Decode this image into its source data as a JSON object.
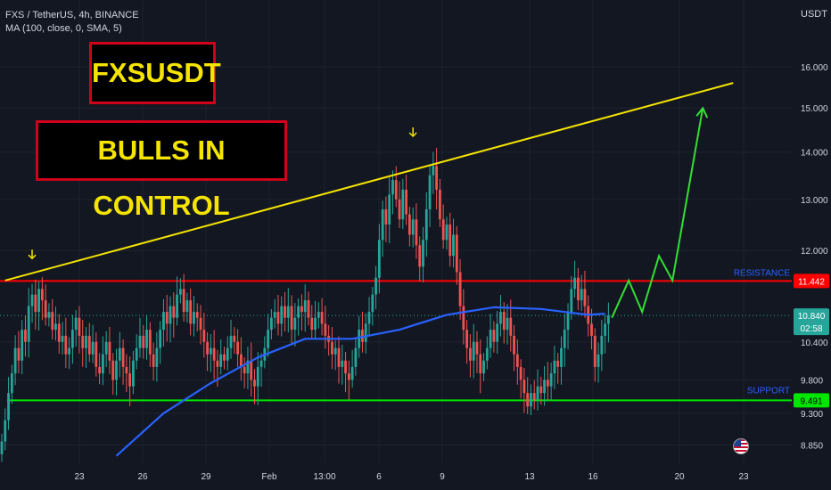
{
  "legend": {
    "symbol_line": "FXS / TetherUS, 4h, BINANCE",
    "indicator_line": "MA (100, close, 0, SMA, 5)"
  },
  "header": {
    "currency": "USDT"
  },
  "annotations": {
    "title": "FXSUSDT",
    "subtitle": "BULLS IN CONTROL",
    "resistance_label": "RESISTANCE",
    "support_label": "SUPPORT"
  },
  "colors": {
    "background": "#131722",
    "bull": "#26a69a",
    "bear": "#ef5350",
    "ma": "#2962ff",
    "resistance": "#ff0000",
    "support": "#00e600",
    "trendline": "#f5e400",
    "projection": "#32e032",
    "title_text": "#f5e400",
    "title_border": "#d0021b",
    "grid": "#1e222d"
  },
  "chart_data": {
    "type": "candlestick",
    "symbol": "FXS / TetherUS",
    "timeframe": "4h",
    "exchange": "BINANCE",
    "price_scale": "log",
    "ylim": [
      8.6,
      16.8
    ],
    "y_ticks": [
      "16.000",
      "15.000",
      "14.000",
      "13.000",
      "12.000",
      "10.400",
      "9.800",
      "9.300",
      "8.850"
    ],
    "x_ticks": [
      "23",
      "26",
      "29",
      "Feb",
      "13:00",
      "6",
      "9",
      "13",
      "16",
      "20",
      "23"
    ],
    "price_labels": [
      {
        "text": "11.442",
        "value": 11.442,
        "color": "#ff0000",
        "text_color": "#ffffff"
      },
      {
        "text": "10.840",
        "value": 10.84,
        "color": "#26a69a",
        "text_color": "#ffffff"
      },
      {
        "text": "02:58",
        "value": 10.7,
        "color": "#26a69a",
        "text_color": "#ffffff"
      },
      {
        "text": "9.491",
        "value": 9.491,
        "color": "#00e600",
        "text_color": "#000000"
      }
    ],
    "resistance": 11.442,
    "support": 9.491,
    "last_price": 10.84,
    "candles_close": [
      8.9,
      9.2,
      9.6,
      9.9,
      10.3,
      10.1,
      10.6,
      10.4,
      11.0,
      11.2,
      10.9,
      11.3,
      11.1,
      10.8,
      10.9,
      10.6,
      10.7,
      10.4,
      10.5,
      10.2,
      10.3,
      10.6,
      10.8,
      10.5,
      10.3,
      10.5,
      10.2,
      10.4,
      10.0,
      9.9,
      10.2,
      10.4,
      10.1,
      9.8,
      10.1,
      10.3,
      10.0,
      9.9,
      9.7,
      10.1,
      10.3,
      10.5,
      10.3,
      10.6,
      10.2,
      10.0,
      10.3,
      10.6,
      10.9,
      10.7,
      11.0,
      10.8,
      11.2,
      11.3,
      10.9,
      11.1,
      10.7,
      10.9,
      10.8,
      10.6,
      10.4,
      10.2,
      10.3,
      10.1,
      10.0,
      10.2,
      10.1,
      10.3,
      10.5,
      10.4,
      10.2,
      10.0,
      9.9,
      10.1,
      9.8,
      9.7,
      10.0,
      10.1,
      10.3,
      10.6,
      10.8,
      10.9,
      10.7,
      11.0,
      10.8,
      11.0,
      10.6,
      10.8,
      11.0,
      10.9,
      11.1,
      10.8,
      10.6,
      10.8,
      10.9,
      10.7,
      10.5,
      10.4,
      10.2,
      10.3,
      10.0,
      10.1,
      9.9,
      9.8,
      10.0,
      10.3,
      10.6,
      10.4,
      10.7,
      10.9,
      11.2,
      11.5,
      12.2,
      12.8,
      12.5,
      13.1,
      13.4,
      13.0,
      12.6,
      13.2,
      12.7,
      12.3,
      12.6,
      12.1,
      11.7,
      12.2,
      12.8,
      13.5,
      13.7,
      13.2,
      12.6,
      12.2,
      12.5,
      11.9,
      12.3,
      11.6,
      11.0,
      10.6,
      10.3,
      10.1,
      10.4,
      10.2,
      9.9,
      10.1,
      10.3,
      10.6,
      10.4,
      10.7,
      10.9,
      10.6,
      10.8,
      10.5,
      10.2,
      10.0,
      9.8,
      9.6,
      9.4,
      9.6,
      9.5,
      9.7,
      9.6,
      9.8,
      9.7,
      9.9,
      10.1,
      10.0,
      10.3,
      10.6,
      10.9,
      11.3,
      11.5,
      11.1,
      11.3,
      11.0,
      10.7,
      10.5,
      10.0,
      10.2,
      10.5,
      10.7,
      10.84
    ],
    "moving_average": {
      "name": "MA (100, close, 0, SMA, 5)",
      "x_index": [
        34,
        48,
        62,
        76,
        90,
        104,
        118,
        132,
        146,
        160,
        174,
        179
      ],
      "values": [
        8.7,
        9.3,
        9.75,
        10.15,
        10.45,
        10.45,
        10.6,
        10.85,
        10.98,
        10.95,
        10.85,
        10.87
      ]
    },
    "trendline": {
      "from": {
        "x_index": 1,
        "value": 11.45
      },
      "to": {
        "x_index": 217,
        "value": 15.6
      }
    },
    "projection_path": {
      "x_index": [
        181,
        186,
        190,
        195,
        199,
        208
      ],
      "values": [
        10.8,
        11.45,
        10.9,
        11.9,
        11.45,
        15.0
      ]
    },
    "markers": [
      {
        "type": "arrow-down",
        "x_index": 9,
        "value": 11.85
      },
      {
        "type": "arrow-down",
        "x_index": 122,
        "value": 14.35
      }
    ]
  }
}
